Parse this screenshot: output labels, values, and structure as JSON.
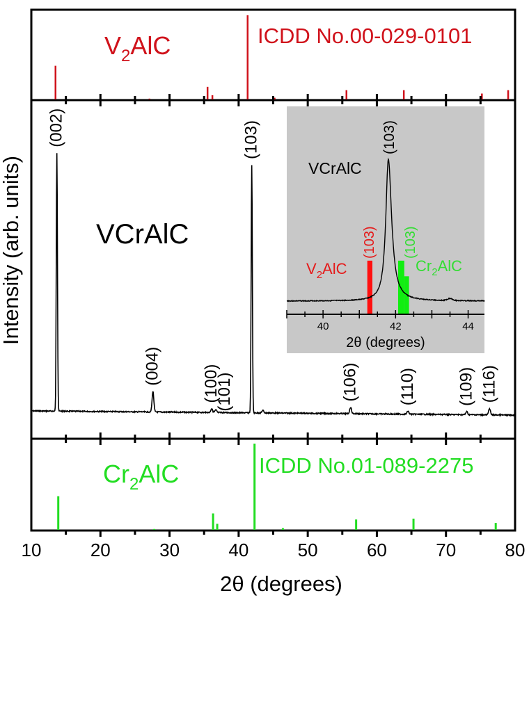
{
  "chart_data": {
    "type": "line",
    "xlabel": "2θ (degrees)",
    "ylabel": "Intensity (arb. units)",
    "xlim": [
      10,
      80
    ],
    "x_ticks": [
      10,
      20,
      30,
      40,
      50,
      60,
      70,
      80
    ],
    "x_tick_labels": [
      "10",
      "20",
      "30",
      "40",
      "50",
      "60",
      "70",
      "80"
    ],
    "grid": false,
    "panels": {
      "top_reference": {
        "type": "bar",
        "phase_label_main": "V",
        "phase_label_sub": "2",
        "phase_label_tail": "AlC",
        "card_label": "ICDD No.00-029-0101",
        "color": "#d0121b",
        "ylim": [
          0,
          100
        ],
        "lines": [
          {
            "x": 13.5,
            "y": 40
          },
          {
            "x": 27.1,
            "y": 1
          },
          {
            "x": 35.5,
            "y": 15
          },
          {
            "x": 36.2,
            "y": 5
          },
          {
            "x": 41.3,
            "y": 100
          },
          {
            "x": 45.2,
            "y": 2
          },
          {
            "x": 55.6,
            "y": 11
          },
          {
            "x": 63.9,
            "y": 11
          },
          {
            "x": 75.2,
            "y": 7
          },
          {
            "x": 79.0,
            "y": 11
          }
        ]
      },
      "main": {
        "sample_label": "VCrAlC",
        "color": "#000000",
        "ylim": [
          0,
          100
        ],
        "baseline": 5,
        "peaks": [
          {
            "x": 13.7,
            "y": 100,
            "hkl": "(002)"
          },
          {
            "x": 27.6,
            "y": 8,
            "hkl": "(004)"
          },
          {
            "x": 36.1,
            "y": 1.5,
            "hkl": "(100)"
          },
          {
            "x": 36.7,
            "y": 1,
            "hkl": "(101)"
          },
          {
            "x": 41.9,
            "y": 96,
            "hkl": "(103)"
          },
          {
            "x": 43.5,
            "y": 1,
            "hkl": ""
          },
          {
            "x": 56.2,
            "y": 2.5,
            "hkl": "(106)"
          },
          {
            "x": 64.5,
            "y": 1.2,
            "hkl": "(110)"
          },
          {
            "x": 73.0,
            "y": 1.2,
            "hkl": "(109)"
          },
          {
            "x": 76.3,
            "y": 2.5,
            "hkl": "(116)"
          }
        ]
      },
      "bottom_reference": {
        "type": "bar",
        "phase_label_main": "Cr",
        "phase_label_sub": "2",
        "phase_label_tail": "AlC",
        "card_label": "ICDD No.01-089-2275",
        "color": "#22dd22",
        "ylim": [
          0,
          100
        ],
        "lines": [
          {
            "x": 13.9,
            "y": 39
          },
          {
            "x": 27.8,
            "y": 1
          },
          {
            "x": 36.3,
            "y": 19
          },
          {
            "x": 36.9,
            "y": 7
          },
          {
            "x": 42.3,
            "y": 100
          },
          {
            "x": 46.4,
            "y": 2
          },
          {
            "x": 57.0,
            "y": 12
          },
          {
            "x": 65.3,
            "y": 13
          },
          {
            "x": 77.2,
            "y": 8
          }
        ]
      },
      "inset": {
        "background": "#c8c8c8",
        "xlabel": "2θ (degrees)",
        "xlim": [
          39,
          44.45
        ],
        "x_ticks": [
          40,
          42,
          44
        ],
        "x_tick_labels": [
          "40",
          "42",
          "44"
        ],
        "sample_label": "VCrAlC",
        "sample_peak": {
          "x": 41.8,
          "y": 100,
          "hkl": "(103)"
        },
        "v2alc": {
          "label_main": "V",
          "label_sub": "2",
          "label_tail": "AlC",
          "hkl": "(103)",
          "x_from": 41.22,
          "x_to": 41.36,
          "y": 28
        },
        "cr2alc": {
          "label_main": "Cr",
          "label_sub": "2",
          "label_tail": "AlC",
          "hkl": "(103)",
          "steps": [
            {
              "x_from": 42.07,
              "x_to": 42.24,
              "y": 28
            },
            {
              "x_from": 42.24,
              "x_to": 42.37,
              "y": 17
            }
          ]
        }
      }
    }
  }
}
